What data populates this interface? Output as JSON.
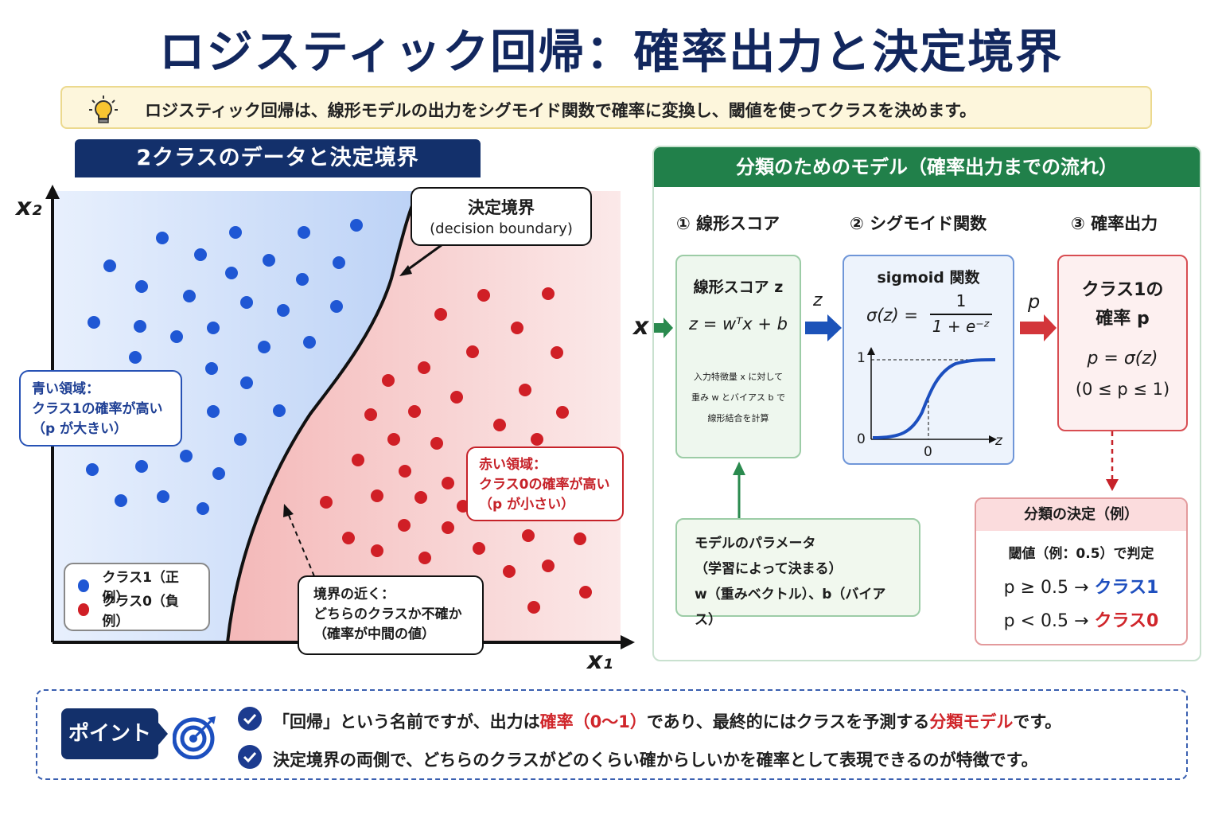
{
  "title": "ロジスティック回帰：確率出力と決定境界",
  "info": {
    "icon": "lightbulb-icon",
    "text": "ロジスティック回帰は、線形モデルの出力をシグモイド関数で確率に変換し、閾値を使ってクラスを決めます。"
  },
  "left_panel": {
    "title": "2クラスのデータと決定境界",
    "x_axis_label": "x₁",
    "y_axis_label": "x₂",
    "boundary_label": "決定境界",
    "boundary_label_en": "(decision boundary)",
    "blue_note": [
      "青い領域：",
      "クラス1の確率が高い",
      "（p が大きい）"
    ],
    "red_note": [
      "赤い領域：",
      "クラス0の確率が高い",
      "（p が小さい）"
    ],
    "near_note": [
      "境界の近く：",
      "どちらのクラスか不確か",
      "（確率が中間の値）"
    ],
    "legend": [
      {
        "label": "クラス1（正例）",
        "color": "#1f57d4"
      },
      {
        "label": "クラス0（負例）",
        "color": "#d01f26"
      }
    ]
  },
  "chart_data": {
    "type": "scatter",
    "series": [
      {
        "name": "クラス1（正例）",
        "color": "#1f57d4",
        "points": [
          [
            204,
            299
          ],
          [
            296,
            292
          ],
          [
            382,
            292
          ],
          [
            448,
            283
          ],
          [
            138,
            334
          ],
          [
            252,
            320
          ],
          [
            338,
            327
          ],
          [
            426,
            330
          ],
          [
            178,
            360
          ],
          [
            291,
            343
          ],
          [
            380,
            351
          ],
          [
            238,
            372
          ],
          [
            310,
            380
          ],
          [
            356,
            390
          ],
          [
            423,
            385
          ],
          [
            118,
            405
          ],
          [
            176,
            410
          ],
          [
            222,
            423
          ],
          [
            268,
            412
          ],
          [
            332,
            436
          ],
          [
            389,
            430
          ],
          [
            170,
            449
          ],
          [
            266,
            463
          ],
          [
            310,
            481
          ],
          [
            268,
            517
          ],
          [
            351,
            516
          ],
          [
            302,
            552
          ],
          [
            234,
            573
          ],
          [
            116,
            590
          ],
          [
            178,
            586
          ],
          [
            275,
            595
          ],
          [
            152,
            629
          ],
          [
            205,
            624
          ],
          [
            255,
            639
          ]
        ]
      },
      {
        "name": "クラス0（負例）",
        "color": "#d01f26",
        "points": [
          [
            608,
            371
          ],
          [
            689,
            369
          ],
          [
            554,
            395
          ],
          [
            650,
            412
          ],
          [
            700,
            443
          ],
          [
            594,
            442
          ],
          [
            533,
            462
          ],
          [
            488,
            478
          ],
          [
            660,
            490
          ],
          [
            574,
            499
          ],
          [
            466,
            521
          ],
          [
            521,
            517
          ],
          [
            628,
            534
          ],
          [
            707,
            518
          ],
          [
            495,
            552
          ],
          [
            549,
            557
          ],
          [
            675,
            552
          ],
          [
            450,
            578
          ],
          [
            605,
            581
          ],
          [
            509,
            592
          ],
          [
            563,
            607
          ],
          [
            474,
            623
          ],
          [
            529,
            625
          ],
          [
            410,
            631
          ],
          [
            664,
            609
          ],
          [
            582,
            636
          ],
          [
            642,
            647
          ],
          [
            508,
            660
          ],
          [
            563,
            663
          ],
          [
            438,
            676
          ],
          [
            664,
            673
          ],
          [
            729,
            677
          ],
          [
            474,
            692
          ],
          [
            602,
            689
          ],
          [
            534,
            701
          ],
          [
            689,
            711
          ],
          [
            640,
            718
          ],
          [
            736,
            744
          ],
          [
            671,
            763
          ]
        ]
      }
    ],
    "xlabel": "x₁",
    "ylabel": "x₂",
    "boundary": "curve"
  },
  "right_panel": {
    "title": "分類のためのモデル（確率出力までの流れ）",
    "steps": [
      "① 線形スコア",
      "② シグモイド関数",
      "③ 確率出力"
    ],
    "input_label": "x",
    "arrow_z": "z",
    "arrow_p": "p",
    "linear_card": {
      "title": "線形スコア z",
      "formula": "z = wᵀx + b",
      "desc": [
        "入力特徴量 x に対して",
        "重み w とバイアス b で",
        "線形結合を計算"
      ]
    },
    "sigmoid_card": {
      "title": "sigmoid 関数",
      "formula_left": "σ(z) =",
      "formula_num": "1",
      "formula_den": "1 + e⁻ᶻ",
      "tick_1": "1",
      "tick_0": "0",
      "tick_x0": "0",
      "axis_z": "z"
    },
    "prob_card": {
      "title1": "クラス1の",
      "title2": "確率 p",
      "formula": "p = σ(z)",
      "range": "(0 ≤ p ≤ 1)"
    },
    "param_card": {
      "title": "モデルのパラメータ",
      "subtitle": "（学習によって決まる）",
      "desc": "w（重みベクトル）、b（バイアス）"
    },
    "decision_card": {
      "title": "分類の決定（例）",
      "threshold": "閾値（例：0.5）で判定",
      "rule1_left": "p ≥ 0.5 →",
      "rule1_right": "クラス1",
      "rule2_left": "p < 0.5 →",
      "rule2_right": "クラス0"
    }
  },
  "bottom": {
    "badge": "ポイント",
    "icon": "target-icon",
    "line1_a": "「回帰」という名前ですが、出力は",
    "line1_b": "確率（0〜1）",
    "line1_c": "であり、最終的にはクラスを予測する",
    "line1_d": "分類モデル",
    "line1_e": "です。",
    "line2": "決定境界の両側で、どちらのクラスがどのくらい確からしいかを確率として表現できるのが特徴です。"
  }
}
